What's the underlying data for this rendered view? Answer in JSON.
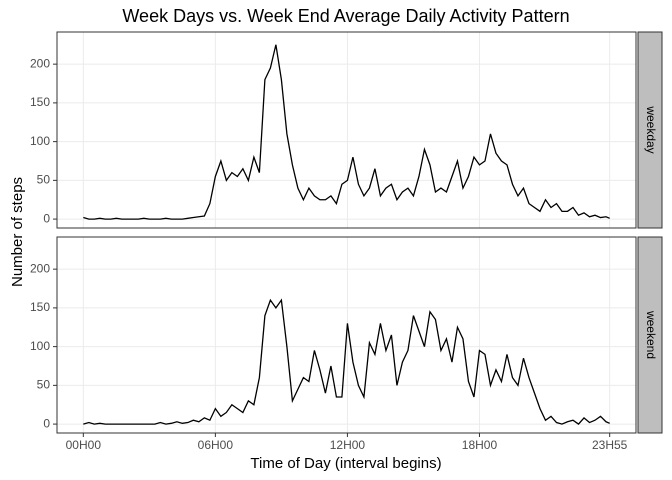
{
  "chart_data": {
    "type": "line",
    "title": "Week Days vs. Week End Average Daily Activity Pattern",
    "x_label": "Time of Day (interval begins)",
    "y_label": "Number of steps",
    "color": "#000000",
    "grid": true,
    "xlim": [
      -71.75,
      1506.75
    ],
    "xticks": [
      {
        "value": 0,
        "label": "00H00"
      },
      {
        "value": 360,
        "label": "06H00"
      },
      {
        "value": 720,
        "label": "12H00"
      },
      {
        "value": 1080,
        "label": "18H00"
      },
      {
        "value": 1435,
        "label": "23H55"
      }
    ],
    "ylim": [
      -11.5,
      241.5
    ],
    "yticks": [
      0,
      50,
      100,
      150,
      200
    ],
    "x": [
      0,
      15,
      30,
      45,
      60,
      75,
      90,
      105,
      120,
      135,
      150,
      165,
      180,
      195,
      210,
      225,
      240,
      255,
      270,
      285,
      300,
      315,
      330,
      345,
      360,
      375,
      390,
      405,
      420,
      435,
      450,
      465,
      480,
      495,
      510,
      525,
      540,
      555,
      570,
      585,
      600,
      615,
      630,
      645,
      660,
      675,
      690,
      705,
      720,
      735,
      750,
      765,
      780,
      795,
      810,
      825,
      840,
      855,
      870,
      885,
      900,
      915,
      930,
      945,
      960,
      975,
      990,
      1005,
      1020,
      1035,
      1050,
      1065,
      1080,
      1095,
      1110,
      1125,
      1140,
      1155,
      1170,
      1185,
      1200,
      1215,
      1230,
      1245,
      1260,
      1275,
      1290,
      1305,
      1320,
      1335,
      1350,
      1365,
      1380,
      1395,
      1410,
      1425,
      1435
    ],
    "panels": [
      {
        "name": "weekday",
        "values": [
          2,
          0,
          0,
          1,
          0,
          0,
          1,
          0,
          0,
          0,
          0,
          1,
          0,
          0,
          0,
          1,
          0,
          0,
          0,
          1,
          2,
          3,
          4,
          20,
          55,
          75,
          50,
          60,
          55,
          65,
          50,
          80,
          60,
          180,
          195,
          225,
          180,
          110,
          70,
          40,
          25,
          40,
          30,
          25,
          25,
          30,
          20,
          45,
          50,
          80,
          45,
          30,
          40,
          65,
          30,
          40,
          45,
          25,
          35,
          40,
          30,
          55,
          90,
          70,
          35,
          40,
          35,
          55,
          75,
          40,
          55,
          80,
          70,
          75,
          110,
          85,
          75,
          70,
          45,
          30,
          40,
          20,
          15,
          10,
          25,
          15,
          20,
          10,
          10,
          15,
          5,
          8,
          3,
          5,
          2,
          3,
          1
        ]
      },
      {
        "name": "weekend",
        "values": [
          0,
          2,
          0,
          1,
          0,
          0,
          0,
          0,
          0,
          0,
          0,
          0,
          0,
          0,
          2,
          0,
          1,
          3,
          1,
          2,
          5,
          3,
          8,
          5,
          20,
          10,
          15,
          25,
          20,
          15,
          30,
          25,
          60,
          140,
          160,
          150,
          160,
          100,
          30,
          45,
          60,
          55,
          95,
          70,
          40,
          75,
          35,
          35,
          130,
          80,
          50,
          35,
          105,
          90,
          130,
          95,
          115,
          50,
          80,
          95,
          140,
          120,
          100,
          145,
          135,
          95,
          110,
          80,
          125,
          110,
          55,
          35,
          95,
          90,
          50,
          70,
          55,
          90,
          60,
          50,
          85,
          60,
          40,
          20,
          5,
          10,
          2,
          0,
          3,
          5,
          0,
          8,
          2,
          5,
          10,
          3,
          1
        ]
      }
    ]
  }
}
